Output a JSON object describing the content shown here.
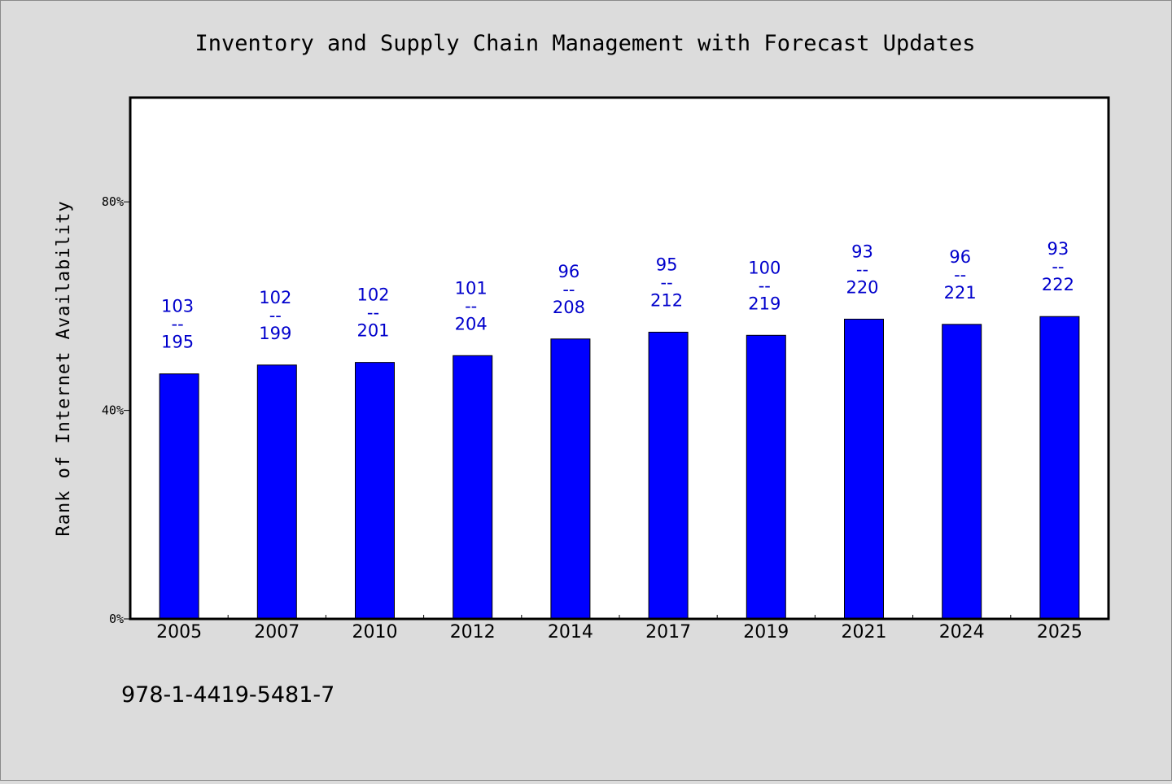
{
  "footer_text": "978-1-4419-5481-7",
  "chart_data": {
    "type": "bar",
    "title": "Inventory and Supply Chain Management with Forecast Updates",
    "xlabel": "",
    "ylabel": "Rank of Internet Availability",
    "ylim": [
      0,
      100
    ],
    "y_ticks": [
      {
        "value": 0,
        "label": "0%"
      },
      {
        "value": 40,
        "label": "40%"
      },
      {
        "value": 80,
        "label": "80%"
      }
    ],
    "categories": [
      "2005",
      "2007",
      "2010",
      "2012",
      "2014",
      "2017",
      "2019",
      "2021",
      "2024",
      "2025"
    ],
    "values": [
      47,
      48.7,
      49.2,
      50.5,
      53.7,
      55,
      54.4,
      57.5,
      56.5,
      58
    ],
    "data_labels": [
      {
        "numerator": "103",
        "separator": "--",
        "denominator": "195"
      },
      {
        "numerator": "102",
        "separator": "--",
        "denominator": "199"
      },
      {
        "numerator": "102",
        "separator": "--",
        "denominator": "201"
      },
      {
        "numerator": "101",
        "separator": "--",
        "denominator": "204"
      },
      {
        "numerator": "96",
        "separator": "--",
        "denominator": "208"
      },
      {
        "numerator": "95",
        "separator": "--",
        "denominator": "212"
      },
      {
        "numerator": "100",
        "separator": "--",
        "denominator": "219"
      },
      {
        "numerator": "93",
        "separator": "--",
        "denominator": "220"
      },
      {
        "numerator": "96",
        "separator": "--",
        "denominator": "221"
      },
      {
        "numerator": "93",
        "separator": "--",
        "denominator": "222"
      }
    ],
    "bar_color": "#0000ff",
    "label_color": "#0000cc",
    "grid": false,
    "legend": "none"
  }
}
